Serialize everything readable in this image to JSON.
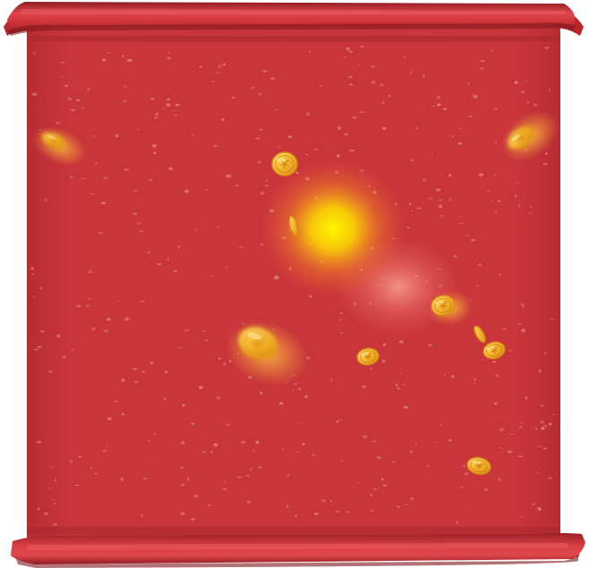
{
  "colors": {
    "paper": "#c7343a",
    "paper_dark": "#a8242b",
    "roll": "#d23a40",
    "roll_shadow": "#8e1c22",
    "roll_highlight": "#e65a5e",
    "speckle": "#e78a7f",
    "coin": "#f6b52c",
    "coin_edge": "#d98a12",
    "coin_mark": "#c97a10",
    "glow_yellow": "#fff200",
    "glow_pink": "#ff9a8a"
  },
  "icons": {
    "scroll": "scroll-banner-icon",
    "coin": "gold-coin-icon"
  }
}
